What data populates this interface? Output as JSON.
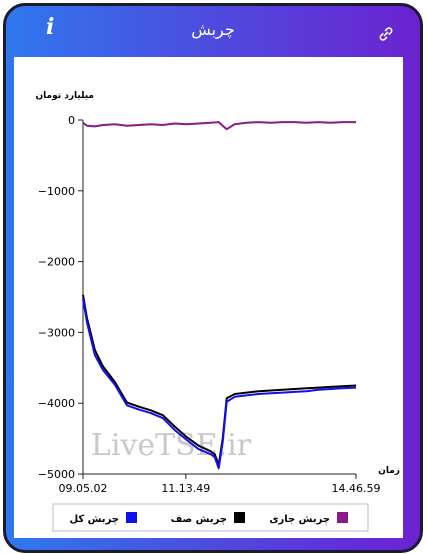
{
  "header": {
    "title": "چربش",
    "info_icon": "info-icon",
    "link_icon": "link-icon"
  },
  "watermark": "LiveTSE.ir",
  "colors": {
    "total": "#1010ee",
    "queue": "#000000",
    "current": "#8a1a8a"
  },
  "chart_data": {
    "type": "line",
    "ylabel": "میلیارد تومان",
    "xlabel": "زمان",
    "ylim": [
      -5000,
      0
    ],
    "yticks": [
      0,
      -1000,
      -2000,
      -3000,
      -4000,
      -5000
    ],
    "ytick_labels": [
      "0",
      "−1000",
      "−2000",
      "−3000",
      "−4000",
      "−5000"
    ],
    "xlim": [
      "09.05.02",
      "14.46.59"
    ],
    "xticks": [
      "09.05.02",
      "11.13.49",
      "14.46.59"
    ],
    "legend_position": "bottom",
    "series": [
      {
        "name": "چربش جاری",
        "color": "#8a1a8a",
        "x": [
          "09.05.02",
          "09.10",
          "09.20",
          "09.30",
          "09.45",
          "10.00",
          "10.15",
          "10.30",
          "10.45",
          "11.00",
          "11.15",
          "11.30",
          "11.45",
          "11.55",
          "12.00",
          "12.05",
          "12.15",
          "12.30",
          "12.45",
          "13.00",
          "13.15",
          "13.30",
          "13.45",
          "14.00",
          "14.15",
          "14.30",
          "14.46.59"
        ],
        "y": [
          -40,
          -80,
          -90,
          -70,
          -60,
          -80,
          -70,
          -60,
          -70,
          -50,
          -60,
          -50,
          -40,
          -30,
          -80,
          -130,
          -60,
          -40,
          -30,
          -40,
          -30,
          -30,
          -40,
          -30,
          -40,
          -30,
          -30
        ]
      },
      {
        "name": "چربش صف",
        "color": "#000000",
        "x": [
          "09.05.02",
          "09.10",
          "09.20",
          "09.30",
          "09.45",
          "10.00",
          "10.15",
          "10.30",
          "10.45",
          "11.00",
          "11.15",
          "11.30",
          "11.45",
          "11.50",
          "11.55",
          "12.00",
          "12.05",
          "12.15",
          "12.30",
          "12.45",
          "13.00",
          "13.15",
          "13.30",
          "13.45",
          "14.00",
          "14.15",
          "14.30",
          "14.46.59"
        ],
        "y": [
          -2470,
          -2800,
          -3250,
          -3480,
          -3700,
          -3990,
          -4050,
          -4100,
          -4170,
          -4330,
          -4480,
          -4600,
          -4680,
          -4720,
          -4870,
          -4500,
          -3930,
          -3870,
          -3850,
          -3830,
          -3820,
          -3810,
          -3800,
          -3790,
          -3780,
          -3770,
          -3760,
          -3750
        ]
      },
      {
        "name": "چربش کل",
        "color": "#1010ee",
        "x": [
          "09.05.02",
          "09.10",
          "09.20",
          "09.30",
          "09.45",
          "10.00",
          "10.15",
          "10.30",
          "10.45",
          "11.00",
          "11.15",
          "11.30",
          "11.45",
          "11.50",
          "11.55",
          "12.00",
          "12.05",
          "12.15",
          "12.30",
          "12.45",
          "13.00",
          "13.15",
          "13.30",
          "13.45",
          "14.00",
          "14.15",
          "14.30",
          "14.46.59"
        ],
        "y": [
          -2520,
          -2860,
          -3320,
          -3530,
          -3740,
          -4030,
          -4090,
          -4140,
          -4210,
          -4380,
          -4520,
          -4650,
          -4720,
          -4760,
          -4920,
          -4550,
          -3980,
          -3910,
          -3890,
          -3870,
          -3860,
          -3850,
          -3840,
          -3830,
          -3810,
          -3800,
          -3790,
          -3780
        ]
      }
    ]
  }
}
